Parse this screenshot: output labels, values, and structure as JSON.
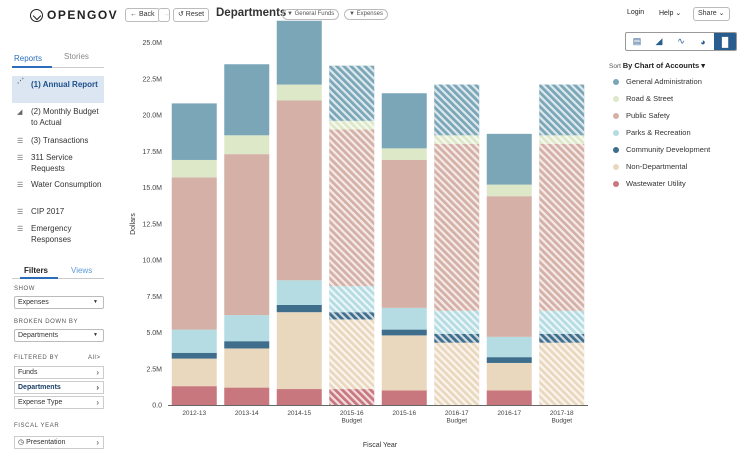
{
  "app": {
    "logo_text": "OPENGOV",
    "back_label": "← Back",
    "reset_label": "↺ Reset",
    "page_title": "Departments",
    "pills": [
      "▼ General Funds",
      "▼ Expenses"
    ],
    "login_label": "Login",
    "help_label": "Help ⌄",
    "share_label": "Share ⌄"
  },
  "sidebar": {
    "tabs": [
      "Reports",
      "Stories"
    ],
    "items": [
      {
        "label": "(1) Annual Report",
        "icon": "line-chart-icon"
      },
      {
        "label": "(2) Monthly Budget to Actual",
        "icon": "area-chart-icon"
      },
      {
        "label": "(3) Transactions",
        "icon": "list-icon"
      },
      {
        "label": "311 Service Requests",
        "icon": "list-icon"
      },
      {
        "label": "Water Consumption",
        "icon": "list-icon"
      },
      {
        "label": "CIP 2017",
        "icon": "list-icon"
      },
      {
        "label": "Emergency Responses",
        "icon": "list-icon"
      }
    ],
    "filter_tabs": [
      "Filters",
      "Views"
    ],
    "show_label": "SHOW",
    "show_value": "Expenses",
    "broken_label": "BROKEN DOWN BY",
    "broken_value": "Departments",
    "filtered_label": "FILTERED BY",
    "all_label": "All",
    "filters": [
      "Funds",
      "Departments",
      "Expense Type"
    ],
    "fiscal_label": "FISCAL YEAR",
    "fiscal_value": "Presentation"
  },
  "legend": {
    "sort_prefix": "Sort",
    "sort_value": "By Chart of Accounts ▾",
    "items": [
      {
        "label": "General Administration",
        "color": "#7aa6b8"
      },
      {
        "label": "Road & Street",
        "color": "#dde8c8"
      },
      {
        "label": "Public Safety",
        "color": "#d4b0a6"
      },
      {
        "label": "Parks & Recreation",
        "color": "#b4dce2"
      },
      {
        "label": "Community Development",
        "color": "#3e6e8c"
      },
      {
        "label": "Non-Departmental",
        "color": "#ead8be"
      },
      {
        "label": "Wastewater Utility",
        "color": "#c9777f"
      }
    ]
  },
  "chart_data": {
    "type": "bar",
    "stacked": true,
    "title": "",
    "xlabel": "Fiscal Year",
    "ylabel": "Dollars",
    "ylim": [
      0,
      26000000
    ],
    "yticks": [
      "0.0",
      "2.5M",
      "5.0M",
      "7.5M",
      "10.0M",
      "12.5M",
      "15.0M",
      "17.5M",
      "20.0M",
      "22.5M",
      "25.0M"
    ],
    "ytick_values": [
      0,
      2500000,
      5000000,
      7500000,
      10000000,
      12500000,
      15000000,
      17500000,
      20000000,
      22500000,
      25000000
    ],
    "categories": [
      [
        "2012-13"
      ],
      [
        "2013-14"
      ],
      [
        "2014-15"
      ],
      [
        "2015-16",
        "Budget"
      ],
      [
        "2015-16"
      ],
      [
        "2016-17",
        "Budget"
      ],
      [
        "2016-17"
      ],
      [
        "2017-18",
        "Budget"
      ]
    ],
    "budget": [
      false,
      false,
      false,
      true,
      false,
      true,
      false,
      true
    ],
    "series": [
      {
        "name": "Wastewater Utility",
        "color": "#c9777f",
        "values": [
          1300000,
          1200000,
          1100000,
          1100000,
          1000000,
          0,
          1000000,
          0
        ]
      },
      {
        "name": "Non-Departmental",
        "color": "#ead8be",
        "values": [
          1900000,
          2700000,
          5300000,
          4800000,
          3800000,
          4300000,
          1900000,
          4300000
        ]
      },
      {
        "name": "Community Development",
        "color": "#3e6e8c",
        "values": [
          400000,
          500000,
          500000,
          500000,
          400000,
          600000,
          400000,
          600000
        ]
      },
      {
        "name": "Parks & Recreation",
        "color": "#b4dce2",
        "values": [
          1600000,
          1800000,
          1700000,
          1800000,
          1500000,
          1600000,
          1400000,
          1600000
        ]
      },
      {
        "name": "Public Safety",
        "color": "#d4b0a6",
        "values": [
          10500000,
          11100000,
          12400000,
          10800000,
          10200000,
          11500000,
          9700000,
          11500000
        ]
      },
      {
        "name": "Road & Street",
        "color": "#dde8c8",
        "values": [
          1200000,
          1300000,
          1100000,
          600000,
          800000,
          600000,
          800000,
          600000
        ]
      },
      {
        "name": "General Administration",
        "color": "#7aa6b8",
        "values": [
          3900000,
          4900000,
          4400000,
          3800000,
          3800000,
          3500000,
          3500000,
          3500000
        ]
      }
    ],
    "grid": false,
    "legend_position": "right"
  }
}
